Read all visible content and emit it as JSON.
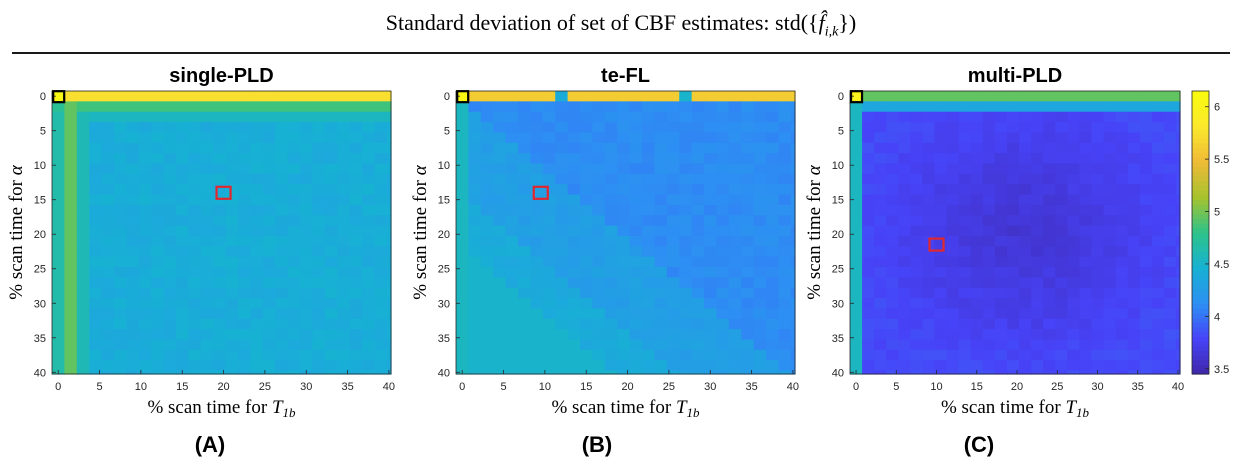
{
  "figure": {
    "suptitle": "Standard deviation of set of CBF estimates: std({f̂i,k})",
    "captions": [
      "(A)",
      "(B)",
      "(C)"
    ]
  },
  "colors": {
    "colormap": [
      "#3e26a8",
      "#4743f8",
      "#2d8ff3",
      "#17b1d3",
      "#2cc38a",
      "#a6c32e",
      "#efba37",
      "#fbe82d",
      "#f9fb0e"
    ],
    "marker_red": "#e0282e",
    "marker_black": "#000000"
  },
  "chart_data": [
    {
      "type": "heatmap",
      "title": "single-PLD",
      "xlabel": "% scan time for T1b",
      "ylabel": "% scan time for α",
      "x_ticks": [
        0,
        5,
        10,
        15,
        20,
        25,
        30,
        35,
        40
      ],
      "y_ticks": [
        0,
        5,
        10,
        15,
        20,
        25,
        30,
        35,
        40
      ],
      "grid_step": 1.5,
      "n_cells": 28,
      "colormap_range": [
        3.45,
        6.15
      ],
      "values": {
        "origin_cell": 6.1,
        "top_row": 5.75,
        "second_row": 4.85,
        "third_row": 4.55,
        "left_col": 4.65,
        "left_col_top": 4.75,
        "second_col": 4.95,
        "third_col": 4.6,
        "interior": 4.42,
        "interior_noise": 0.05
      },
      "markers": [
        {
          "kind": "optimum",
          "x": 20,
          "y": 14,
          "color": "red"
        },
        {
          "kind": "origin",
          "x": 0,
          "y": 0,
          "color": "black"
        }
      ]
    },
    {
      "type": "heatmap",
      "title": "te-FL",
      "xlabel": "% scan time for T1b",
      "ylabel": "% scan time for α",
      "x_ticks": [
        0,
        5,
        10,
        15,
        20,
        25,
        30,
        35,
        40
      ],
      "y_ticks": [
        0,
        5,
        10,
        15,
        20,
        25,
        30,
        35,
        40
      ],
      "grid_step": 1.5,
      "n_cells": 28,
      "colormap_range": [
        3.45,
        6.15
      ],
      "values": {
        "origin_cell": 6.1,
        "top_row": 5.6,
        "top_row_gaps": [
          {
            "x": 12,
            "value": 4.4
          },
          {
            "x": 27,
            "value": 4.5
          }
        ],
        "left_col": 4.55,
        "interior_upper": 4.12,
        "interior_lower": 4.28,
        "diagonal_band": 4.4,
        "corner_lower_right": 4.5,
        "interior_noise": 0.04
      },
      "markers": [
        {
          "kind": "optimum",
          "x": 9.5,
          "y": 14,
          "color": "red"
        },
        {
          "kind": "origin",
          "x": 0,
          "y": 0,
          "color": "black"
        }
      ]
    },
    {
      "type": "heatmap",
      "title": "multi-PLD",
      "xlabel": "% scan time for T1b",
      "ylabel": "% scan time for α",
      "x_ticks": [
        0,
        5,
        10,
        15,
        20,
        25,
        30,
        35,
        40
      ],
      "y_ticks": [
        0,
        5,
        10,
        15,
        20,
        25,
        30,
        35,
        40
      ],
      "grid_step": 1.5,
      "n_cells": 28,
      "colormap_range": [
        3.45,
        6.15
      ],
      "values": {
        "origin_cell": 6.0,
        "top_row": 4.95,
        "second_row": 4.35,
        "left_col": 4.55,
        "interior": 3.72,
        "interior_center": 3.62,
        "interior_edge": 3.82,
        "interior_noise": 0.04
      },
      "markers": [
        {
          "kind": "optimum",
          "x": 10,
          "y": 21.5,
          "color": "red"
        },
        {
          "kind": "origin",
          "x": 0,
          "y": 0,
          "color": "black"
        }
      ]
    }
  ],
  "colorbar": {
    "ticks": [
      3.5,
      4,
      4.5,
      5,
      5.5,
      6
    ],
    "tick_labels": [
      "3.5",
      "4",
      "4.5",
      "5",
      "5.5",
      "6"
    ],
    "range": [
      3.45,
      6.15
    ]
  }
}
